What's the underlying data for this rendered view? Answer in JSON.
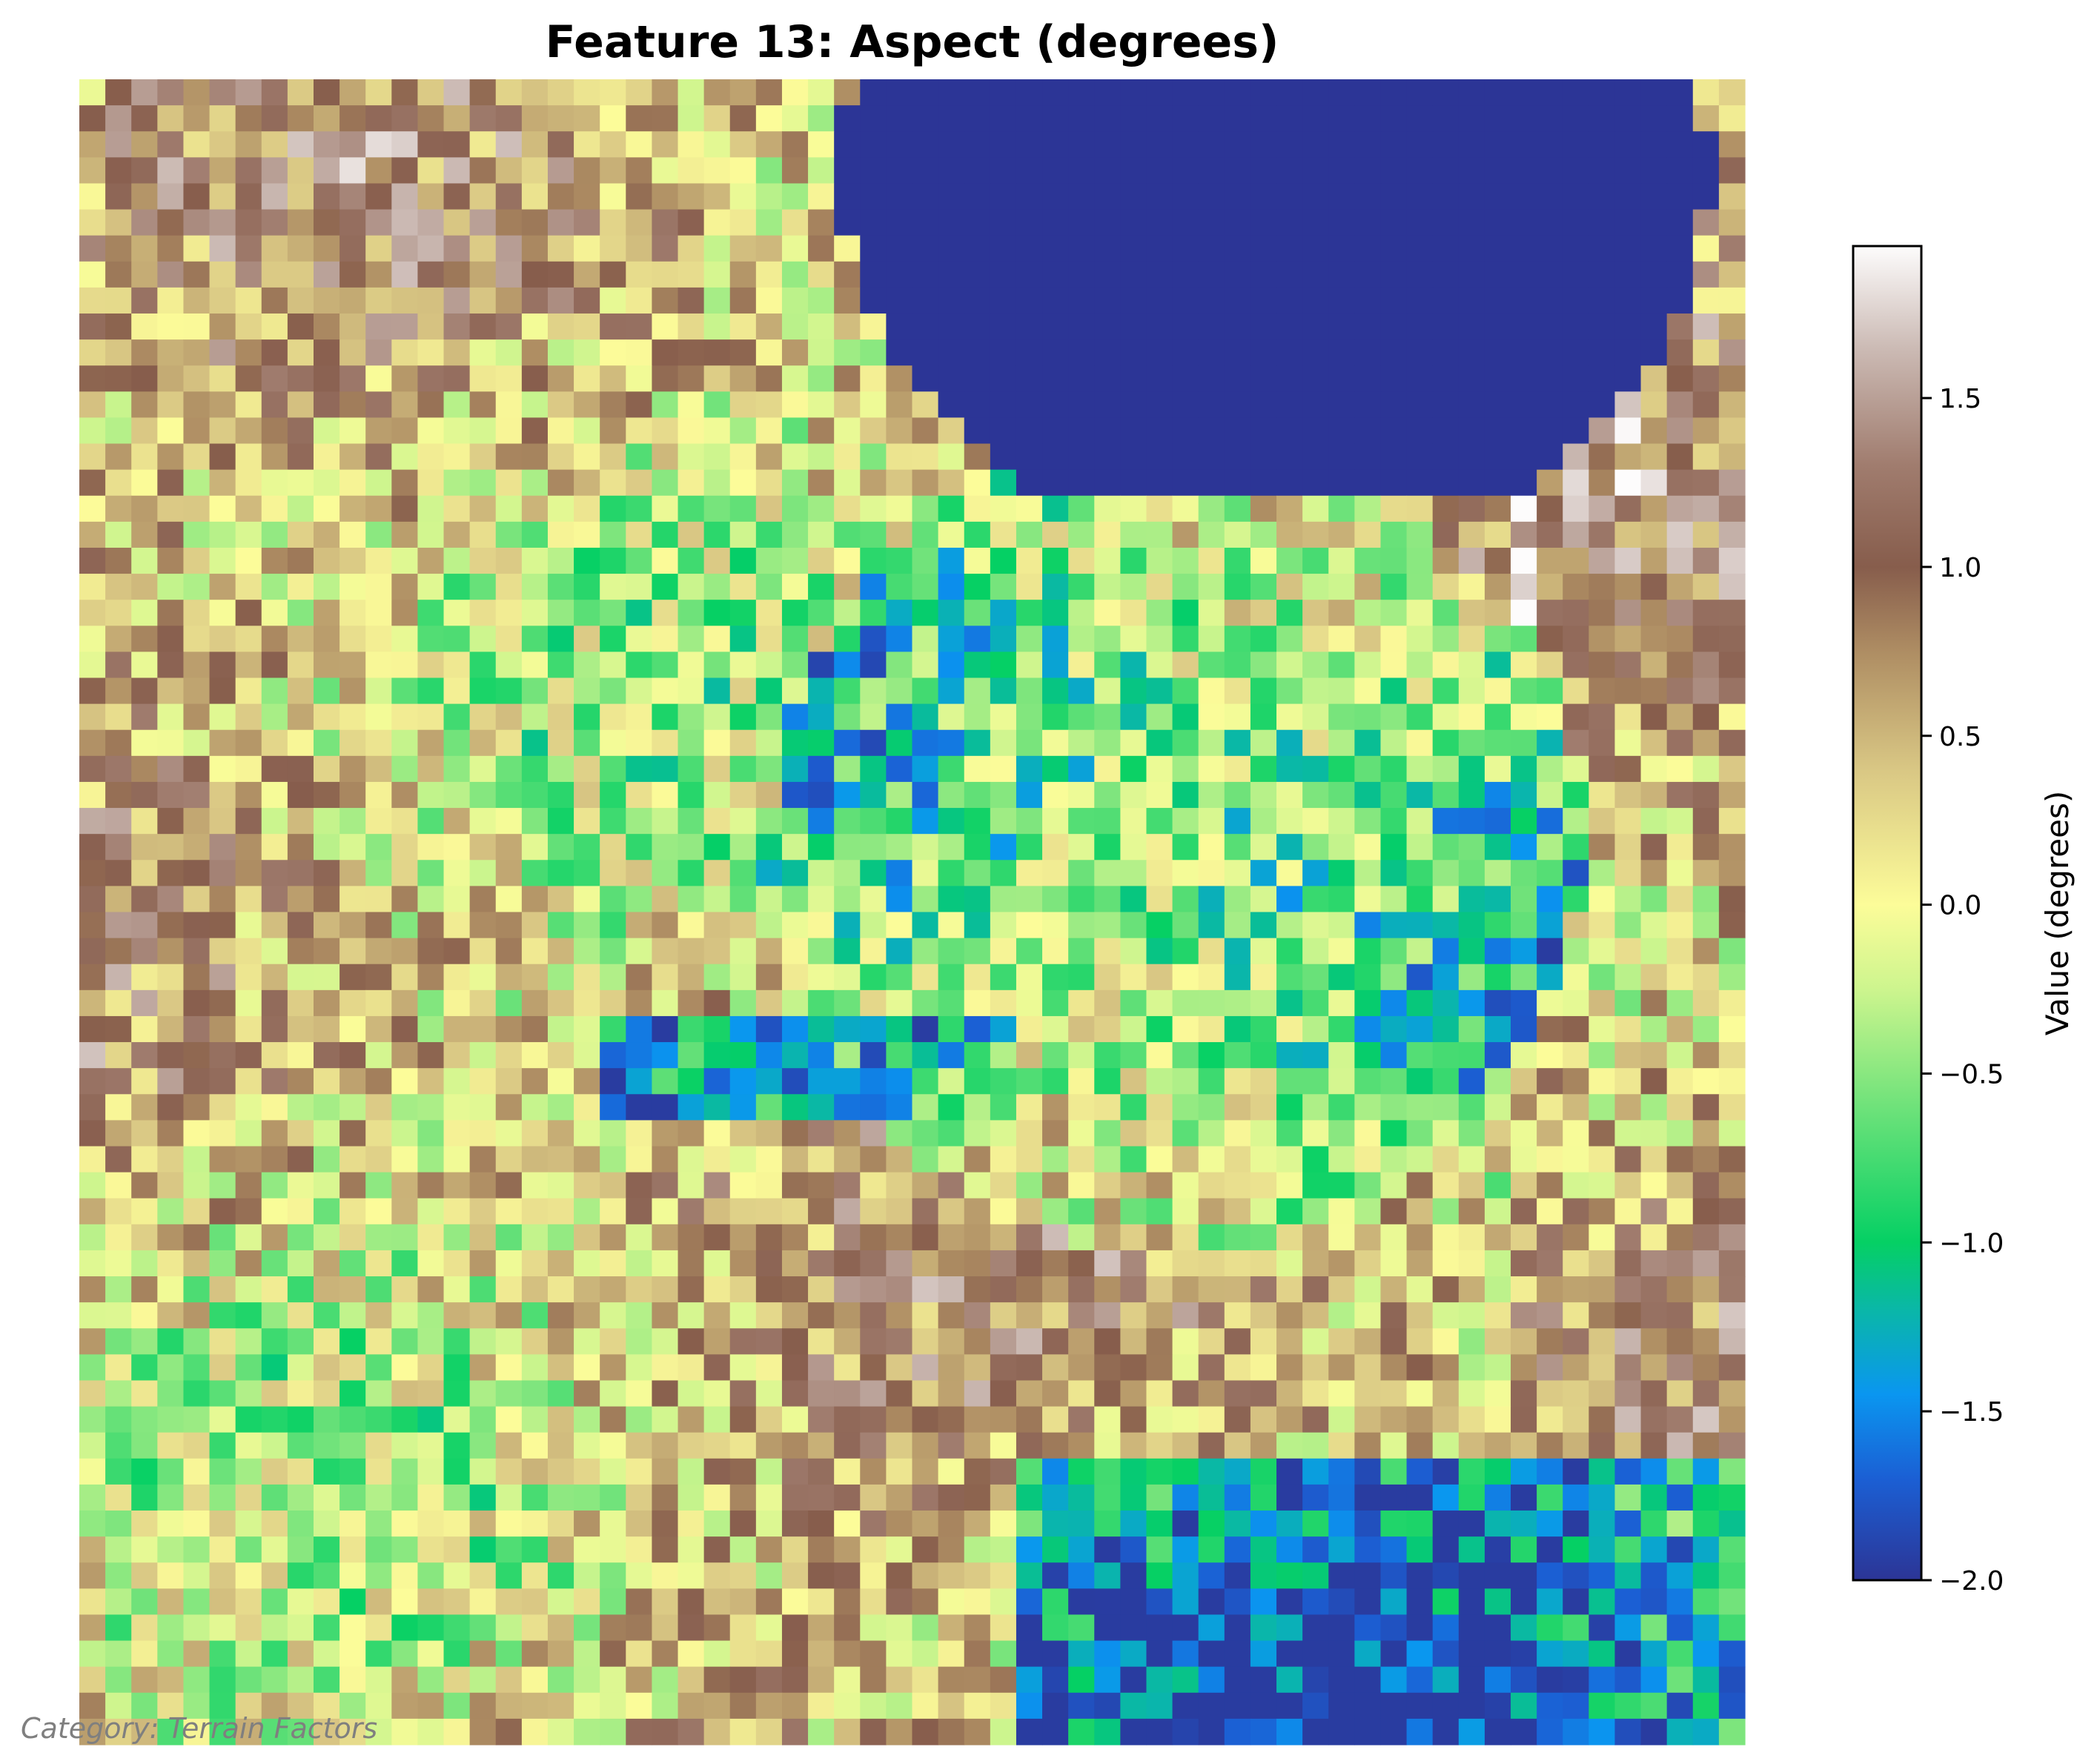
{
  "chart_data": {
    "type": "heatmap",
    "title": "Feature 13: Aspect (degrees)",
    "colorbar": {
      "label": "Value (degrees)",
      "range": [
        -2.0,
        1.95
      ],
      "ticks": [
        "−2.0",
        "−1.5",
        "−1.0",
        "−0.5",
        "0.0",
        "0.5",
        "1.0",
        "1.5"
      ],
      "tick_values": [
        -2.0,
        -1.5,
        -1.0,
        -0.5,
        0.0,
        0.5,
        1.0,
        1.5
      ],
      "colormap": "terrain-like",
      "stops": [
        {
          "v": -2.0,
          "color": "#2c3596"
        },
        {
          "v": -1.7,
          "color": "#1b5fd4"
        },
        {
          "v": -1.45,
          "color": "#0a96f0"
        },
        {
          "v": -1.2,
          "color": "#0ab7a8"
        },
        {
          "v": -1.0,
          "color": "#05d064"
        },
        {
          "v": -0.6,
          "color": "#6ee27a"
        },
        {
          "v": -0.25,
          "color": "#cdf58e"
        },
        {
          "v": 0.0,
          "color": "#fcfc99"
        },
        {
          "v": 0.4,
          "color": "#d9c784"
        },
        {
          "v": 0.75,
          "color": "#ae8d63"
        },
        {
          "v": 1.0,
          "color": "#875d4c"
        },
        {
          "v": 1.3,
          "color": "#a07c6e"
        },
        {
          "v": 1.65,
          "color": "#ccbbb5"
        },
        {
          "v": 1.95,
          "color": "#fdfcfc"
        }
      ]
    },
    "grid": {
      "rows": 64,
      "cols": 64
    },
    "mask_value": -2.0,
    "axes_visible": false
  },
  "footnote": "Category: Terrain Factors"
}
